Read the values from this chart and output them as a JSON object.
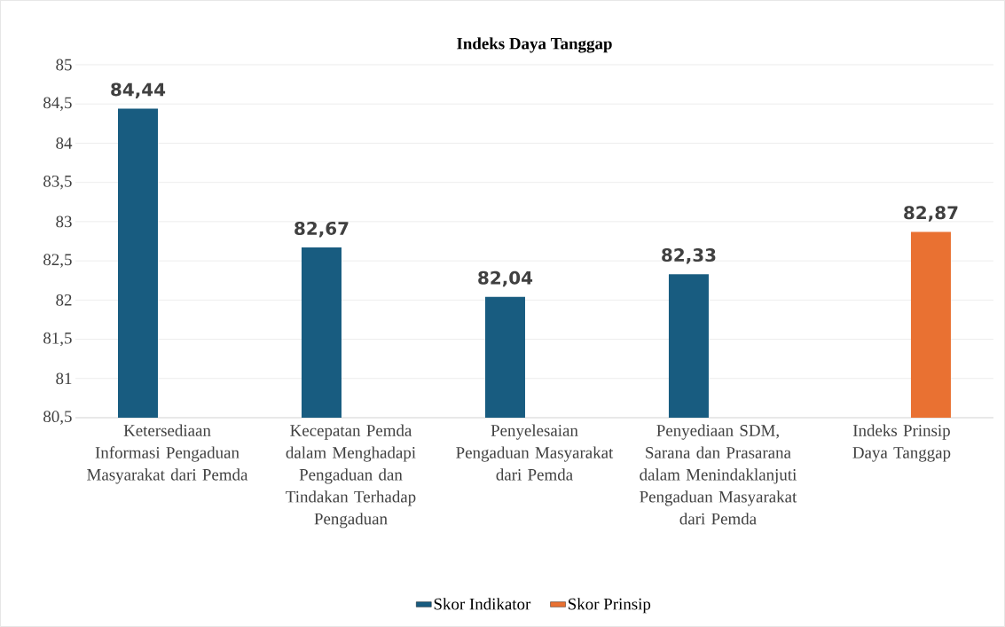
{
  "chart_data": {
    "type": "bar",
    "title": "Indeks Daya Tanggap",
    "categories": [
      "Ketersediaan Informasi Pengaduan Masyarakat dari Pemda",
      "Kecepatan Pemda dalam Menghadapi Pengaduan dan Tindakan Terhadap Pengaduan",
      "Penyelesaian Pengaduan Masyarakat dari Pemda",
      "Penyediaan SDM, Sarana dan Prasarana dalam Menindaklanjuti Pengaduan Masyarakat dari Pemda",
      "Indeks Prinsip Daya Tanggap"
    ],
    "series": [
      {
        "name": "Skor Indikator",
        "color": "#185c80",
        "values": [
          84.44,
          82.67,
          82.04,
          82.33,
          null
        ],
        "value_labels": [
          "84,44",
          "82,67",
          "82,04",
          "82,33",
          null
        ]
      },
      {
        "name": "Skor Prinsip",
        "color": "#e97132",
        "values": [
          null,
          null,
          null,
          null,
          82.87
        ],
        "value_labels": [
          null,
          null,
          null,
          null,
          "82,87"
        ]
      }
    ],
    "ylim": [
      80.5,
      85
    ],
    "yticks": [
      {
        "value": 80.5,
        "label": "80,5"
      },
      {
        "value": 81,
        "label": "81"
      },
      {
        "value": 81.5,
        "label": "81,5"
      },
      {
        "value": 82,
        "label": "82"
      },
      {
        "value": 82.5,
        "label": "82,5"
      },
      {
        "value": 83,
        "label": "83"
      },
      {
        "value": 83.5,
        "label": "83,5"
      },
      {
        "value": 84,
        "label": "84"
      },
      {
        "value": 84.5,
        "label": "84,5"
      },
      {
        "value": 85,
        "label": "85"
      }
    ],
    "grid": "y",
    "legend": "bottom"
  }
}
